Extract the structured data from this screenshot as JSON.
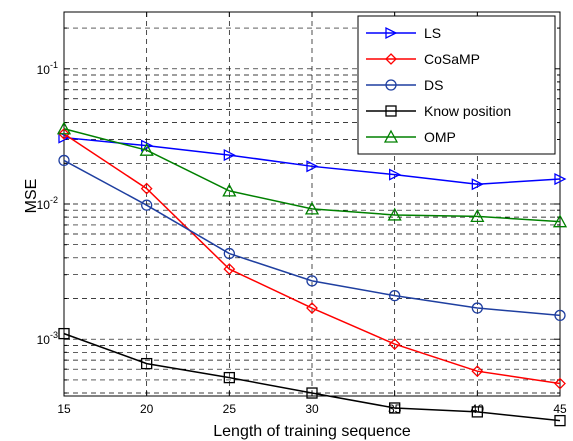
{
  "chart_data": {
    "type": "line",
    "xlabel": "Length of training sequence",
    "ylabel": "MSE",
    "x": [
      15,
      20,
      25,
      30,
      35,
      40,
      45
    ],
    "xlim": [
      15,
      45
    ],
    "ylim_log10": [
      -3.42,
      -0.58
    ],
    "yscale": "log",
    "grid": true,
    "legend_position": "top-right",
    "x_tick_labels": [
      "15",
      "20",
      "25",
      "30",
      "35",
      "40",
      "45"
    ],
    "y_tick_labels": [
      {
        "base": "10",
        "exp": "-3",
        "value": 0.001
      },
      {
        "base": "10",
        "exp": "-2",
        "value": 0.01
      },
      {
        "base": "10",
        "exp": "-1",
        "value": 0.1
      }
    ],
    "series": [
      {
        "name": "LS",
        "color": "#0000ff",
        "marker": "triangle-right",
        "values": [
          0.031,
          0.027,
          0.023,
          0.019,
          0.0165,
          0.014,
          0.0153
        ]
      },
      {
        "name": "CoSaMP",
        "color": "#ff0000",
        "marker": "diamond",
        "values": [
          0.033,
          0.013,
          0.0033,
          0.0017,
          0.00092,
          0.00058,
          0.00047
        ]
      },
      {
        "name": "DS",
        "color": "#1f3fa0",
        "marker": "circle",
        "values": [
          0.021,
          0.0098,
          0.0043,
          0.0027,
          0.0021,
          0.0017,
          0.0015
        ]
      },
      {
        "name": "Know position",
        "color": "#000000",
        "marker": "square",
        "values": [
          0.0011,
          0.00066,
          0.00052,
          0.0004,
          0.00031,
          0.00029,
          0.00025
        ]
      },
      {
        "name": "OMP",
        "color": "#008000",
        "marker": "triangle-up",
        "values": [
          0.036,
          0.025,
          0.0125,
          0.0092,
          0.0083,
          0.0081,
          0.0074
        ]
      }
    ]
  }
}
